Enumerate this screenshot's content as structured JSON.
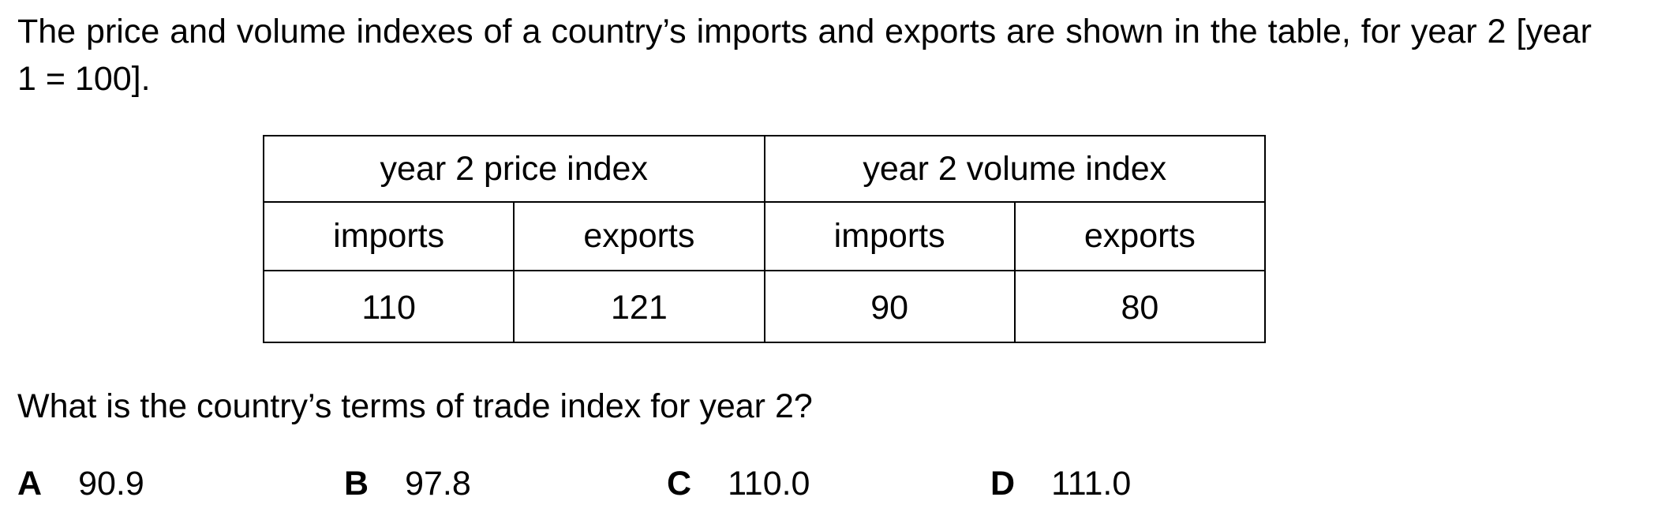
{
  "question_intro": "The price and volume indexes of a country’s imports and exports are shown in the table, for year 2 [year 1 = 100].",
  "table": {
    "group_headers": [
      "year 2 price index",
      "year 2 volume index"
    ],
    "sub_headers": [
      "imports",
      "exports",
      "imports",
      "exports"
    ],
    "values": [
      "110",
      "121",
      "90",
      "80"
    ]
  },
  "question": "What is the country’s terms of trade index for year 2?",
  "options": [
    {
      "letter": "A",
      "value": "90.9"
    },
    {
      "letter": "B",
      "value": "97.8"
    },
    {
      "letter": "C",
      "value": "110.0"
    },
    {
      "letter": "D",
      "value": "111.0"
    }
  ]
}
